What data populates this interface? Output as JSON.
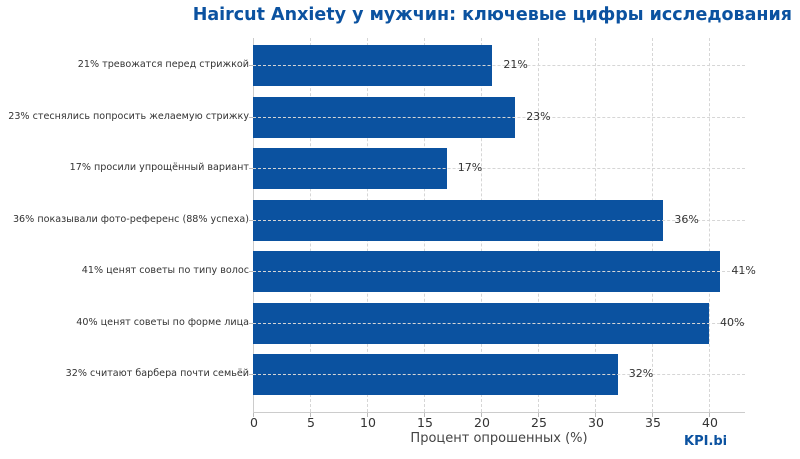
{
  "chart_data": {
    "type": "bar",
    "orientation": "horizontal",
    "title": "Haircut Anxiety у мужчин: ключевые цифры исследования",
    "xlabel": "Процент опрошенных (%)",
    "ylabel": "",
    "xlim": [
      0,
      43
    ],
    "xticks": [
      0,
      5,
      10,
      15,
      20,
      25,
      30,
      35,
      40
    ],
    "grid": true,
    "categories": [
      "21% тревожатся перед стрижкой",
      "23% стеснялись попросить желаемую стрижку",
      "17% просили упрощённый вариант",
      "36% показывали фото-референс (88% успеха)",
      "41% ценят советы по типу волос",
      "40% ценят советы по форме лица",
      "32% считают барбера почти семьёй"
    ],
    "values": [
      21,
      23,
      17,
      36,
      41,
      40,
      32
    ],
    "value_labels": [
      "21%",
      "23%",
      "17%",
      "36%",
      "41%",
      "40%",
      "32%"
    ],
    "bar_color": "#0b52a0"
  },
  "header": {
    "title": "Haircut Anxiety у мужчин: ключевые цифры исследования"
  },
  "axis": {
    "xlabel": "Процент опрошенных (%)",
    "ticks": [
      "0",
      "5",
      "10",
      "15",
      "20",
      "25",
      "30",
      "35",
      "40"
    ]
  },
  "branding": {
    "text": "KPI.bi",
    "color": "#0b52a0"
  }
}
